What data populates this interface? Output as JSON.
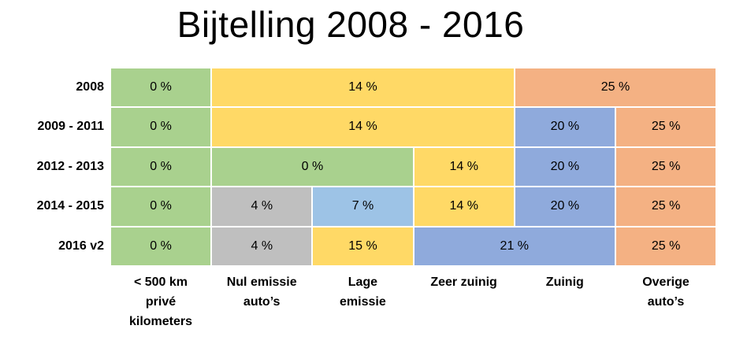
{
  "title": "Bijtelling 2008 - 2016",
  "colors": {
    "green": "#a9d18e",
    "yellow": "#ffd966",
    "orange": "#f4b183",
    "blue": "#8faadc",
    "light_blue": "#9dc3e6",
    "gray": "#bfbfbf"
  },
  "columns": [
    "< 500 km privé kilometers",
    "Nul emissie auto’s",
    "Lage emissie",
    "Zeer zuinig",
    "Zuinig",
    "Overige auto’s"
  ],
  "rows": [
    {
      "label": "2008",
      "cells": [
        {
          "value": "0 %",
          "span": 1,
          "color": "green"
        },
        {
          "value": "14 %",
          "span": 3,
          "color": "yellow"
        },
        {
          "value": "25 %",
          "span": 2,
          "color": "orange"
        }
      ]
    },
    {
      "label": "2009 - 2011",
      "cells": [
        {
          "value": "0 %",
          "span": 1,
          "color": "green"
        },
        {
          "value": "14 %",
          "span": 3,
          "color": "yellow"
        },
        {
          "value": "20 %",
          "span": 1,
          "color": "blue"
        },
        {
          "value": "25 %",
          "span": 1,
          "color": "orange"
        }
      ]
    },
    {
      "label": "2012 - 2013",
      "cells": [
        {
          "value": "0 %",
          "span": 1,
          "color": "green"
        },
        {
          "value": "0 %",
          "span": 2,
          "color": "green"
        },
        {
          "value": "14 %",
          "span": 1,
          "color": "yellow"
        },
        {
          "value": "20 %",
          "span": 1,
          "color": "blue"
        },
        {
          "value": "25 %",
          "span": 1,
          "color": "orange"
        }
      ]
    },
    {
      "label": "2014 - 2015",
      "cells": [
        {
          "value": "0 %",
          "span": 1,
          "color": "green"
        },
        {
          "value": "4 %",
          "span": 1,
          "color": "gray"
        },
        {
          "value": "7 %",
          "span": 1,
          "color": "light_blue"
        },
        {
          "value": "14 %",
          "span": 1,
          "color": "yellow"
        },
        {
          "value": "20 %",
          "span": 1,
          "color": "blue"
        },
        {
          "value": "25 %",
          "span": 1,
          "color": "orange"
        }
      ]
    },
    {
      "label": "2016 v2",
      "cells": [
        {
          "value": "0 %",
          "span": 1,
          "color": "green"
        },
        {
          "value": "4 %",
          "span": 1,
          "color": "gray"
        },
        {
          "value": "15 %",
          "span": 1,
          "color": "yellow"
        },
        {
          "value": "21 %",
          "span": 2,
          "color": "blue"
        },
        {
          "value": "25 %",
          "span": 1,
          "color": "orange"
        }
      ]
    }
  ]
}
